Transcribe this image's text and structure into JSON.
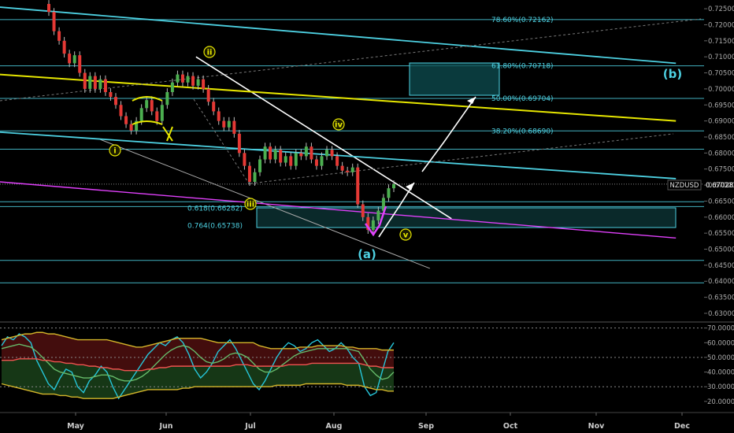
{
  "chart_data": [
    {
      "type": "candlestick",
      "symbol": "NZDUSD",
      "last_price": 0.67028,
      "ylim": [
        0.6295,
        0.7265
      ],
      "y_ticks": [
        "0.72500",
        "0.72000",
        "0.71500",
        "0.71000",
        "0.70500",
        "0.70000",
        "0.69500",
        "0.69000",
        "0.68500",
        "0.68000",
        "0.67500",
        "0.67000",
        "0.66500",
        "0.66000",
        "0.65500",
        "0.65000",
        "0.64500",
        "0.64000",
        "0.63500",
        "0.63000"
      ],
      "x_ticks": [
        "May",
        "Jun",
        "Jul",
        "Aug",
        "Sep",
        "Oct",
        "Nov",
        "Dec"
      ],
      "fib_levels": [
        {
          "label": "78.60%(0.72162)",
          "value": 0.72162
        },
        {
          "label": "61.80%(0.70718)",
          "value": 0.70718
        },
        {
          "label": "50.00%(0.69704)",
          "value": 0.69704
        },
        {
          "label": "38.20%(0.68690)",
          "value": 0.6869
        },
        {
          "label": "0.618(0.66282)",
          "value": 0.66282
        },
        {
          "label": "0.764(0.65738)",
          "value": 0.65738
        }
      ],
      "horizontal_levels": [
        0.72162,
        0.70718,
        0.69704,
        0.6869,
        0.6812,
        0.6648,
        0.6633,
        0.6465,
        0.6395
      ],
      "wave_labels": [
        "i",
        "ii",
        "iii",
        "iv",
        "v",
        "(a)",
        "(b)"
      ],
      "candles": [
        [
          0.7265,
          0.724
        ],
        [
          0.724,
          0.718
        ],
        [
          0.718,
          0.715
        ],
        [
          0.715,
          0.711
        ],
        [
          0.711,
          0.708
        ],
        [
          0.708,
          0.7105
        ],
        [
          0.7105,
          0.705
        ],
        [
          0.705,
          0.7
        ],
        [
          0.7,
          0.704
        ],
        [
          0.704,
          0.7
        ],
        [
          0.7,
          0.703
        ],
        [
          0.703,
          0.699
        ],
        [
          0.699,
          0.6975
        ],
        [
          0.6975,
          0.695
        ],
        [
          0.695,
          0.6915
        ],
        [
          0.6915,
          0.689
        ],
        [
          0.689,
          0.687
        ],
        [
          0.687,
          0.69
        ],
        [
          0.69,
          0.694
        ],
        [
          0.694,
          0.6965
        ],
        [
          0.6965,
          0.693
        ],
        [
          0.693,
          0.69
        ],
        [
          0.69,
          0.695
        ],
        [
          0.695,
          0.699
        ],
        [
          0.699,
          0.702
        ],
        [
          0.702,
          0.7045
        ],
        [
          0.7045,
          0.702
        ],
        [
          0.702,
          0.704
        ],
        [
          0.704,
          0.701
        ],
        [
          0.701,
          0.703
        ],
        [
          0.703,
          0.7
        ],
        [
          0.7,
          0.696
        ],
        [
          0.696,
          0.693
        ],
        [
          0.693,
          0.69
        ],
        [
          0.69,
          0.688
        ],
        [
          0.688,
          0.69
        ],
        [
          0.69,
          0.686
        ],
        [
          0.686,
          0.68
        ],
        [
          0.68,
          0.676
        ],
        [
          0.676,
          0.671
        ],
        [
          0.671,
          0.674
        ],
        [
          0.674,
          0.678
        ],
        [
          0.678,
          0.682
        ],
        [
          0.682,
          0.678
        ],
        [
          0.678,
          0.681
        ],
        [
          0.681,
          0.677
        ],
        [
          0.677,
          0.679
        ],
        [
          0.679,
          0.676
        ],
        [
          0.676,
          0.68
        ],
        [
          0.68,
          0.679
        ],
        [
          0.679,
          0.682
        ],
        [
          0.682,
          0.678
        ],
        [
          0.678,
          0.676
        ],
        [
          0.676,
          0.679
        ],
        [
          0.679,
          0.681
        ],
        [
          0.681,
          0.679
        ],
        [
          0.679,
          0.676
        ],
        [
          0.676,
          0.6745
        ],
        [
          0.6745,
          0.674
        ],
        [
          0.674,
          0.6755
        ],
        [
          0.6755,
          0.664
        ],
        [
          0.664,
          0.66
        ],
        [
          0.66,
          0.656
        ],
        [
          0.656,
          0.659
        ],
        [
          0.659,
          0.662
        ],
        [
          0.662,
          0.666
        ],
        [
          0.666,
          0.669
        ],
        [
          0.669,
          0.6703
        ]
      ],
      "trendlines": [
        [
          [
            0.29,
            0.71
          ],
          [
            0.668,
            0.6595
          ]
        ],
        [
          [
            0.145,
            0.6845
          ],
          [
            0.636,
            0.644
          ]
        ],
        [
          [
            0.0,
            0.7045
          ],
          [
            1.0,
            0.69
          ]
        ],
        [
          [
            0.0,
            0.6865
          ],
          [
            1.0,
            0.672
          ]
        ],
        [
          [
            0.0,
            0.7255
          ],
          [
            1.0,
            0.708
          ]
        ],
        [
          [
            0.0,
            0.671
          ],
          [
            1.0,
            0.6535
          ]
        ]
      ]
    },
    {
      "type": "line",
      "title": "",
      "ylim": [
        13.5,
        72.5
      ],
      "y_ticks": [
        "70.0000",
        "60.0000",
        "50.0000",
        "40.0000",
        "30.0000",
        "20.0000"
      ],
      "levels": [
        70,
        50,
        30
      ],
      "series": [
        {
          "color": "#26c6da",
          "values": [
            58,
            64,
            62,
            66,
            64,
            60,
            48,
            40,
            32,
            28,
            36,
            42,
            40,
            30,
            26,
            34,
            38,
            44,
            40,
            30,
            22,
            28,
            34,
            40,
            46,
            52,
            56,
            60,
            58,
            62,
            64,
            60,
            52,
            42,
            36,
            40,
            46,
            54,
            58,
            62,
            56,
            48,
            40,
            32,
            28,
            34,
            42,
            50,
            56,
            60,
            58,
            54,
            56,
            60,
            62,
            58,
            54,
            56,
            60,
            56,
            50,
            46,
            30,
            24,
            26,
            40,
            54,
            60
          ]
        },
        {
          "color": "#66bb6a",
          "values": [
            56,
            57,
            58,
            59,
            58,
            57,
            54,
            50,
            46,
            42,
            40,
            39,
            38,
            37,
            36,
            36,
            37,
            38,
            38,
            37,
            35,
            34,
            34,
            35,
            37,
            40,
            44,
            48,
            52,
            55,
            57,
            58,
            57,
            54,
            50,
            47,
            46,
            47,
            49,
            52,
            53,
            52,
            50,
            46,
            42,
            40,
            40,
            42,
            45,
            48,
            51,
            53,
            54,
            55,
            56,
            56,
            56,
            56,
            56,
            56,
            55,
            54,
            48,
            42,
            38,
            35,
            36,
            40
          ]
        },
        {
          "color": "#ef5350",
          "values": [
            48,
            48,
            48,
            49,
            49,
            49,
            49,
            48,
            48,
            47,
            47,
            46,
            46,
            45,
            45,
            44,
            44,
            43,
            43,
            42,
            42,
            41,
            41,
            41,
            41,
            42,
            42,
            43,
            43,
            44,
            44,
            44,
            44,
            44,
            44,
            44,
            44,
            44,
            44,
            44,
            45,
            45,
            45,
            44,
            44,
            44,
            44,
            44,
            44,
            45,
            45,
            45,
            45,
            46,
            46,
            46,
            46,
            46,
            46,
            46,
            46,
            46,
            45,
            44,
            44,
            43,
            43,
            43
          ]
        },
        {
          "color": "#d4b52a",
          "values": [
            62,
            63,
            64,
            65,
            66,
            66,
            67,
            67,
            66,
            66,
            65,
            64,
            63,
            62,
            62,
            62,
            62,
            62,
            62,
            61,
            60,
            59,
            58,
            57,
            57,
            58,
            59,
            60,
            61,
            62,
            63,
            63,
            63,
            63,
            63,
            62,
            61,
            60,
            60,
            60,
            60,
            60,
            60,
            60,
            58,
            57,
            56,
            56,
            56,
            56,
            56,
            57,
            57,
            57,
            58,
            58,
            58,
            58,
            58,
            57,
            57,
            56,
            56,
            56,
            56,
            55,
            55,
            55
          ]
        },
        {
          "color": "#d4b52a",
          "values": [
            32,
            31,
            30,
            29,
            28,
            27,
            26,
            25,
            25,
            25,
            24,
            24,
            23,
            23,
            22,
            22,
            22,
            22,
            22,
            22,
            23,
            24,
            25,
            26,
            27,
            28,
            28,
            28,
            28,
            28,
            28,
            29,
            29,
            30,
            30,
            30,
            30,
            30,
            30,
            30,
            30,
            30,
            30,
            30,
            30,
            30,
            30,
            31,
            31,
            31,
            31,
            31,
            32,
            32,
            32,
            32,
            32,
            32,
            32,
            31,
            31,
            31,
            30,
            29,
            28,
            28,
            27,
            27
          ]
        }
      ]
    }
  ]
}
